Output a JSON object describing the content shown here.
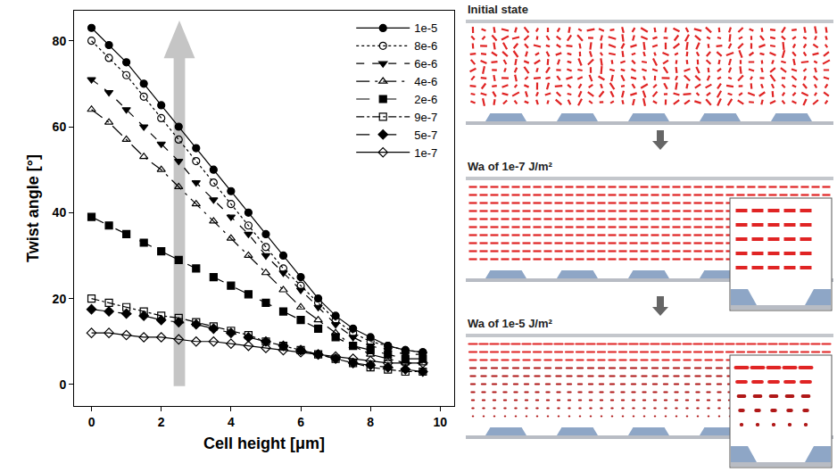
{
  "chart_data": {
    "type": "line",
    "x_label": "Cell height [μm]",
    "y_label": "Twist angle [°]",
    "x": [
      0,
      0.5,
      1,
      1.5,
      2,
      2.5,
      3,
      3.5,
      4,
      4.5,
      5,
      5.5,
      6,
      6.5,
      7,
      7.5,
      8,
      8.5,
      9,
      9.5
    ],
    "xlim": [
      -0.5,
      10.4
    ],
    "xticks": [
      0,
      2,
      4,
      6,
      8,
      10
    ],
    "ylim": [
      -5,
      87
    ],
    "yticks": [
      0,
      20,
      40,
      60,
      80
    ],
    "grid": false,
    "legend": "top right",
    "series": [
      {
        "name": "1e-5",
        "color": "#000000",
        "marker": "circle",
        "line_style": "solid",
        "values": [
          83,
          79,
          75,
          70,
          65,
          60,
          55,
          50,
          45,
          40,
          35,
          30,
          25,
          20,
          16,
          13,
          11,
          9,
          8,
          7.5
        ]
      },
      {
        "name": "8e-6",
        "color": "#000000",
        "marker": "circle-open",
        "line_style": "dot",
        "values": [
          80,
          76,
          72,
          67,
          62,
          57,
          52,
          47,
          42,
          37,
          32,
          27,
          23,
          19,
          15,
          12,
          10,
          9,
          8,
          7.5
        ]
      },
      {
        "name": "6e-6",
        "color": "#000000",
        "marker": "triangle-down",
        "line_style": "dash",
        "values": [
          71,
          68,
          64,
          60,
          56,
          52,
          47,
          43,
          39,
          35,
          30,
          26,
          22,
          18,
          14,
          11,
          9,
          8,
          7,
          7
        ]
      },
      {
        "name": "4e-6",
        "color": "#000000",
        "marker": "triangle-up-open",
        "line_style": "longdashdot",
        "values": [
          64,
          61,
          57,
          53,
          50,
          46,
          42,
          38,
          34,
          30,
          26,
          22,
          18,
          15,
          12,
          9,
          7,
          6,
          5,
          5
        ]
      },
      {
        "name": "2e-6",
        "color": "#000000",
        "marker": "square",
        "line_style": "longdash",
        "values": [
          39,
          37,
          35,
          33,
          31,
          29,
          27,
          25,
          23,
          21,
          19,
          17,
          15,
          13,
          11,
          9,
          8,
          7,
          6,
          6
        ]
      },
      {
        "name": "9e-7",
        "color": "#000000",
        "marker": "square-open",
        "line_style": "dashdot",
        "values": [
          20,
          19,
          18,
          17,
          16,
          15.5,
          14.5,
          13.5,
          12.5,
          11.5,
          10,
          9,
          8,
          7,
          6,
          5,
          4,
          3.5,
          3,
          3
        ]
      },
      {
        "name": "5e-7",
        "color": "#000000",
        "marker": "diamond",
        "line_style": "longdash",
        "values": [
          17.5,
          17,
          16.5,
          16,
          15,
          14.5,
          14,
          13,
          12,
          11,
          10,
          9,
          8,
          7,
          6,
          5,
          4.5,
          4,
          3.5,
          3
        ]
      },
      {
        "name": "1e-7",
        "color": "#000000",
        "marker": "diamond-open",
        "line_style": "solid",
        "values": [
          12,
          12,
          11.5,
          11,
          11,
          10.5,
          10,
          10,
          9.5,
          9,
          8.5,
          8,
          7.5,
          7,
          6.5,
          6,
          5.5,
          5,
          5,
          5
        ]
      }
    ]
  },
  "diagram": {
    "panels": [
      {
        "title": "Initial state"
      },
      {
        "title": "Wa of 1e-7 J/m²"
      },
      {
        "title": "Wa of 1e-5 J/m²"
      }
    ]
  }
}
